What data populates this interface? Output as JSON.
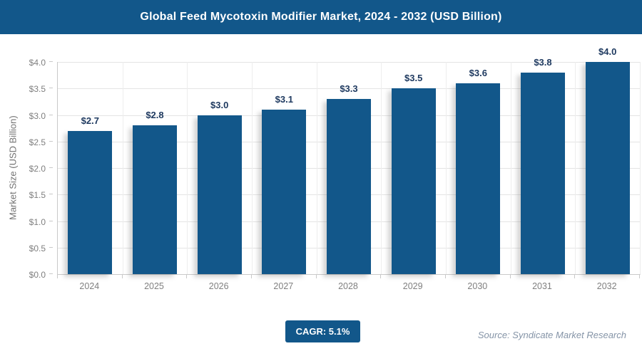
{
  "header": {
    "title": "Global Feed Mycotoxin Modifier Market, 2024 - 2032 (USD Billion)"
  },
  "chart_data": {
    "type": "bar",
    "title": "Global Feed Mycotoxin Modifier Market, 2024 - 2032 (USD Billion)",
    "categories": [
      "2024",
      "2025",
      "2026",
      "2027",
      "2028",
      "2029",
      "2030",
      "2031",
      "2032"
    ],
    "values": [
      2.7,
      2.8,
      3.0,
      3.1,
      3.3,
      3.5,
      3.6,
      3.8,
      4.0
    ],
    "bar_labels": [
      "$2.7",
      "$2.8",
      "$3.0",
      "$3.1",
      "$3.3",
      "$3.5",
      "$3.6",
      "$3.8",
      "$4.0"
    ],
    "xlabel": "",
    "ylabel": "Market Size (USD Billion)",
    "ylim": [
      0,
      4.0
    ],
    "y_tick_step": 0.5,
    "y_tick_labels": [
      "$0.0",
      "$0.5",
      "$1.0",
      "$1.5",
      "$2.0",
      "$2.5",
      "$3.0",
      "$3.5",
      "$4.0"
    ],
    "grid": true,
    "legend": "none"
  },
  "footer": {
    "cagr_label": "CAGR: 5.1%",
    "source": "Source: Syndicate Market Research"
  },
  "colors": {
    "brand_blue": "#12578A",
    "value_label": "#1F3A60",
    "axis_text": "#7F7F7F",
    "grid_line": "#E4E4E4"
  }
}
